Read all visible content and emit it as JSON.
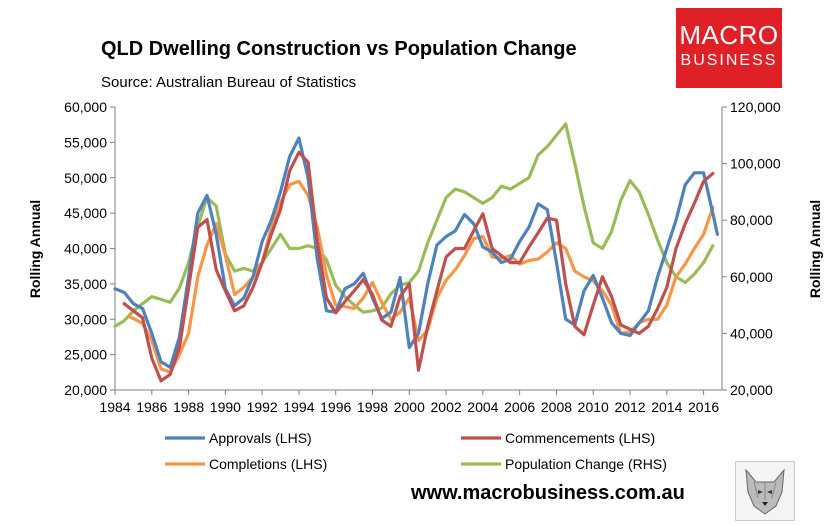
{
  "header": {
    "title": "QLD Dwelling Construction vs Population Change",
    "subtitle": "Source: Australian Bureau of Statistics"
  },
  "logo": {
    "line1": "MACRO",
    "line2": "BUSINESS",
    "color": "#e02027"
  },
  "footer": {
    "url": "www.macrobusiness.com.au",
    "mascot_icon": "wolf-icon"
  },
  "chart_data": {
    "type": "line",
    "ylabel_left": "Rolling Annual",
    "ylabel_right": "Rolling Annual",
    "xlim": [
      1984,
      2017
    ],
    "ylim_left": [
      20000,
      60000
    ],
    "ylim_right": [
      20000,
      120000
    ],
    "xticks": [
      1984,
      1986,
      1988,
      1990,
      1992,
      1994,
      1996,
      1998,
      2000,
      2002,
      2004,
      2006,
      2008,
      2010,
      2012,
      2014,
      2016
    ],
    "xtick_labels": [
      "1984",
      "1986",
      "1988",
      "1990",
      "1992",
      "1994",
      "1996",
      "1998",
      "2000",
      "2002",
      "2004",
      "2006",
      "2008",
      "2010",
      "2012",
      "2014",
      "2016"
    ],
    "yticks_left": [
      20000,
      25000,
      30000,
      35000,
      40000,
      45000,
      50000,
      55000,
      60000
    ],
    "ytick_labels_left": [
      "20,000",
      "25,000",
      "30,000",
      "35,000",
      "40,000",
      "45,000",
      "50,000",
      "55,000",
      "60,000"
    ],
    "yticks_right": [
      20000,
      40000,
      60000,
      80000,
      100000,
      120000
    ],
    "ytick_labels_right": [
      "20,000",
      "40,000",
      "60,000",
      "80,000",
      "100,000",
      "120,000"
    ],
    "grid": false,
    "legend_position": "bottom",
    "series": [
      {
        "name": "Approvals (LHS)",
        "axis": "left",
        "color": "#4f81bd",
        "x": [
          1984,
          1984.5,
          1985,
          1985.5,
          1986,
          1986.5,
          1987,
          1987.5,
          1988,
          1988.5,
          1989,
          1989.5,
          1990,
          1990.5,
          1991,
          1991.5,
          1992,
          1992.5,
          1993,
          1993.5,
          1994,
          1994.5,
          1995,
          1995.5,
          1996,
          1996.5,
          1997,
          1997.5,
          1998,
          1998.5,
          1999,
          1999.5,
          2000,
          2000.5,
          2001,
          2001.5,
          2002,
          2002.5,
          2003,
          2003.5,
          2004,
          2004.5,
          2005,
          2005.5,
          2006,
          2006.5,
          2007,
          2007.5,
          2008,
          2008.5,
          2009,
          2009.5,
          2010,
          2010.5,
          2011,
          2011.5,
          2012,
          2012.5,
          2013,
          2013.5,
          2014,
          2014.5,
          2015,
          2015.5,
          2016,
          2016.5,
          2016.75
        ],
        "values": [
          34300,
          33800,
          32200,
          31500,
          28000,
          24000,
          23200,
          27500,
          36000,
          45000,
          47500,
          42000,
          34300,
          31900,
          33000,
          36000,
          41000,
          44000,
          48000,
          53000,
          55600,
          50000,
          38500,
          31200,
          31000,
          34300,
          35000,
          36500,
          33000,
          30100,
          31000,
          35900,
          26000,
          28000,
          35000,
          40500,
          41700,
          42500,
          44800,
          43500,
          40200,
          39500,
          38000,
          38500,
          41000,
          43000,
          46300,
          45500,
          38000,
          30000,
          29200,
          34000,
          36200,
          33000,
          29500,
          28000,
          27700,
          29500,
          31200,
          36000,
          40000,
          44000,
          49000,
          50700,
          50700,
          45000,
          42000
        ]
      },
      {
        "name": "Commencements (LHS)",
        "axis": "left",
        "color": "#c0504d",
        "x": [
          1984.5,
          1985,
          1985.5,
          1986,
          1986.5,
          1987,
          1987.5,
          1988,
          1988.5,
          1989,
          1989.5,
          1990,
          1990.5,
          1991,
          1991.5,
          1992,
          1992.5,
          1993,
          1993.5,
          1994,
          1994.5,
          1995,
          1995.5,
          1996,
          1996.5,
          1997,
          1997.5,
          1998,
          1998.5,
          1999,
          1999.5,
          2000,
          2000.5,
          2001,
          2001.5,
          2002,
          2002.5,
          2003,
          2003.5,
          2004,
          2004.5,
          2005,
          2005.5,
          2006,
          2006.5,
          2007,
          2007.5,
          2008,
          2008.5,
          2009,
          2009.5,
          2010,
          2010.5,
          2011,
          2011.5,
          2012,
          2012.5,
          2013,
          2013.5,
          2014,
          2014.5,
          2015,
          2015.5,
          2016,
          2016.5
        ],
        "values": [
          32200,
          31200,
          30200,
          24500,
          21300,
          22200,
          26000,
          34500,
          43000,
          44100,
          37000,
          34000,
          31200,
          31900,
          34500,
          38000,
          42000,
          45500,
          51000,
          53600,
          52200,
          41000,
          33000,
          30900,
          32500,
          34000,
          35600,
          33500,
          29900,
          29000,
          33200,
          35000,
          22800,
          29000,
          34000,
          38800,
          40000,
          40000,
          42500,
          44900,
          40000,
          39000,
          38000,
          38000,
          40200,
          42200,
          44300,
          44000,
          35000,
          29000,
          27800,
          32000,
          36000,
          33200,
          29200,
          28600,
          28000,
          29000,
          31500,
          34500,
          40000,
          43500,
          46400,
          49500,
          50600
        ]
      },
      {
        "name": "Completions (LHS)",
        "axis": "left",
        "color": "#f79646",
        "x": [
          1984.75,
          1985,
          1985.5,
          1986,
          1986.5,
          1987,
          1987.5,
          1988,
          1988.5,
          1989,
          1989.5,
          1990,
          1990.5,
          1991,
          1991.5,
          1992,
          1992.5,
          1993,
          1993.5,
          1994,
          1994.5,
          1995,
          1995.5,
          1996,
          1996.5,
          1997,
          1997.5,
          1998,
          1998.5,
          1999,
          1999.5,
          2000,
          2000.5,
          2001,
          2001.5,
          2002,
          2002.5,
          2003,
          2003.5,
          2004,
          2004.5,
          2005,
          2005.5,
          2006,
          2006.5,
          2007,
          2007.5,
          2008,
          2008.5,
          2009,
          2009.5,
          2010,
          2010.5,
          2011,
          2011.5,
          2012,
          2012.5,
          2013,
          2013.5,
          2014,
          2014.5,
          2015,
          2015.5,
          2016,
          2016.5
        ],
        "values": [
          30400,
          30100,
          29400,
          27000,
          23000,
          22500,
          25000,
          28000,
          36000,
          40500,
          43500,
          39000,
          33500,
          34500,
          36000,
          38000,
          43000,
          46500,
          49000,
          49500,
          47500,
          43000,
          36200,
          32000,
          31800,
          31500,
          33000,
          35200,
          32400,
          30000,
          31000,
          33000,
          27000,
          28500,
          33000,
          35500,
          37000,
          39000,
          41400,
          41700,
          38800,
          38600,
          39000,
          37800,
          38300,
          38500,
          39500,
          40800,
          40000,
          36800,
          36000,
          35400,
          34000,
          32000,
          28000,
          28200,
          29500,
          30000,
          30000,
          32000,
          36000,
          37800,
          40000,
          42000,
          45800
        ]
      },
      {
        "name": "Population Change (RHS)",
        "axis": "right",
        "color": "#9bbb59",
        "x": [
          1984,
          1984.5,
          1985,
          1985.5,
          1986,
          1986.5,
          1987,
          1987.5,
          1988,
          1988.5,
          1989,
          1989.5,
          1990,
          1990.5,
          1991,
          1991.5,
          1992,
          1992.5,
          1993,
          1993.5,
          1994,
          1994.5,
          1995,
          1995.5,
          1996,
          1996.5,
          1997,
          1997.5,
          1998,
          1998.5,
          1999,
          1999.5,
          2000,
          2000.5,
          2001,
          2001.5,
          2002,
          2002.5,
          2003,
          2003.5,
          2004,
          2004.5,
          2005,
          2005.5,
          2006,
          2006.5,
          2007,
          2007.5,
          2008,
          2008.5,
          2009,
          2009.5,
          2010,
          2010.5,
          2011,
          2011.5,
          2012,
          2012.5,
          2013,
          2013.5,
          2014,
          2014.5,
          2015,
          2015.5,
          2016,
          2016.5
        ],
        "values": [
          42500,
          44500,
          48000,
          50500,
          53000,
          52000,
          51000,
          56000,
          65000,
          78000,
          88000,
          85000,
          68000,
          62000,
          63000,
          62000,
          65000,
          70000,
          75000,
          70000,
          70000,
          71000,
          70000,
          66000,
          57000,
          53000,
          50000,
          47500,
          48000,
          49000,
          54000,
          57000,
          58000,
          62000,
          72000,
          80000,
          88000,
          91000,
          90000,
          88000,
          86000,
          88000,
          92000,
          91000,
          93000,
          95000,
          103000,
          106000,
          110000,
          114000,
          100000,
          85000,
          72000,
          70000,
          76000,
          87000,
          94000,
          90000,
          82000,
          73000,
          65000,
          60000,
          58000,
          61000,
          65000,
          71000
        ]
      }
    ]
  }
}
